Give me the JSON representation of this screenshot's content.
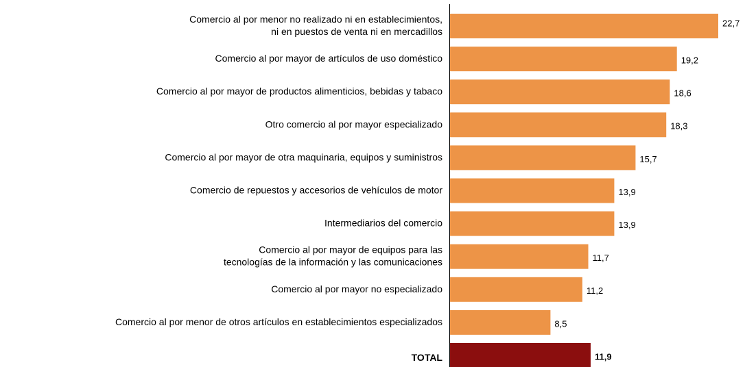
{
  "chart_data": {
    "type": "barh",
    "categories": [
      [
        "Comercio al por menor no realizado ni en establecimientos,",
        "ni en puestos de venta ni en mercadillos"
      ],
      [
        "Comercio al por mayor de artículos de uso doméstico"
      ],
      [
        "Comercio al por mayor de productos alimenticios, bebidas y tabaco"
      ],
      [
        "Otro comercio al por mayor especializado"
      ],
      [
        "Comercio al por mayor de otra maquinaria, equipos y suministros"
      ],
      [
        "Comercio de repuestos y accesorios de vehículos de motor"
      ],
      [
        "Intermediarios del comercio"
      ],
      [
        "Comercio al por mayor de equipos para las",
        "tecnologías de la información y las comunicaciones"
      ],
      [
        "Comercio al por mayor no especializado"
      ],
      [
        "Comercio al por menor de otros artículos en establecimientos especializados"
      ],
      [
        "TOTAL"
      ]
    ],
    "values": [
      22.7,
      19.2,
      18.6,
      18.3,
      15.7,
      13.9,
      13.9,
      11.7,
      11.2,
      8.5,
      11.9
    ],
    "value_labels": [
      "22,7",
      "19,2",
      "18,6",
      "18,3",
      "15,7",
      "13,9",
      "13,9",
      "11,7",
      "11,2",
      "8,5",
      "11,9"
    ],
    "colors": [
      "#ED9447",
      "#ED9447",
      "#ED9447",
      "#ED9447",
      "#ED9447",
      "#ED9447",
      "#ED9447",
      "#ED9447",
      "#ED9447",
      "#ED9447",
      "#8B0E0E"
    ]
  }
}
